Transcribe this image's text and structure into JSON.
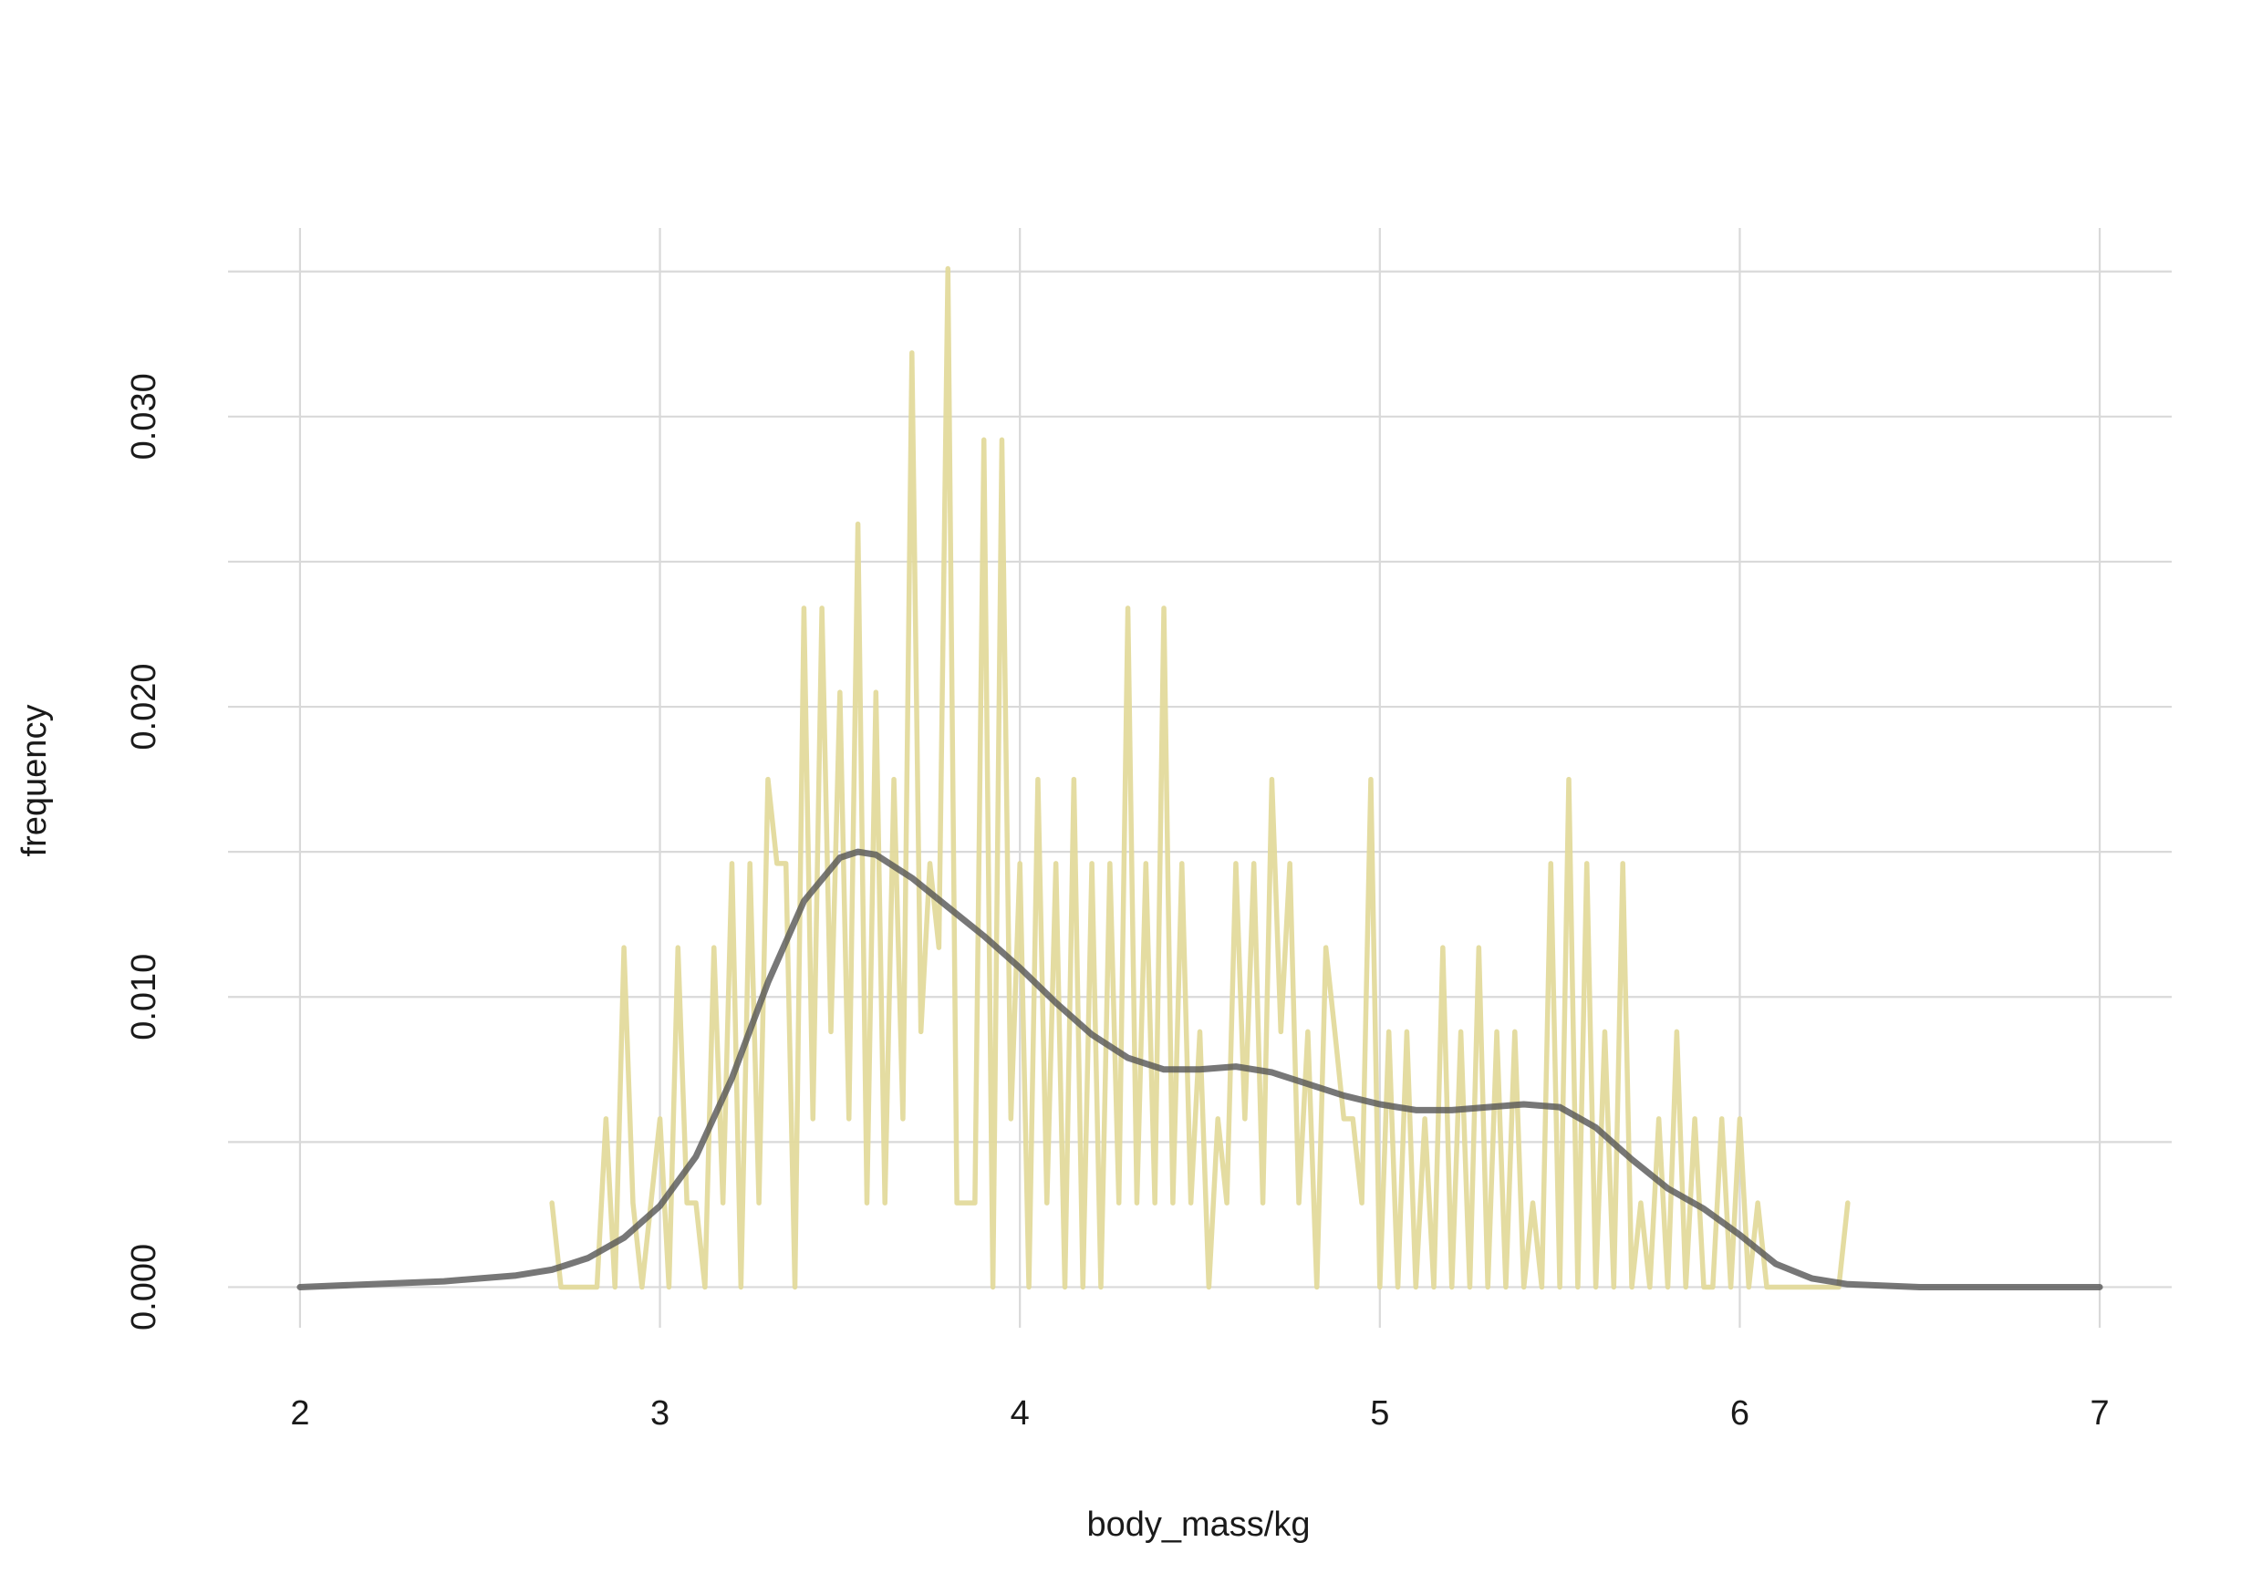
{
  "chart_data": {
    "type": "line",
    "xlabel": "body_mass/kg",
    "ylabel": "frequency",
    "xlim": [
      1.8,
      7.2
    ],
    "ylim": [
      -0.0014,
      0.0365
    ],
    "xticks": [
      2,
      3,
      4,
      5,
      6,
      7
    ],
    "yticks": [
      {
        "value": 0,
        "label": "0.000"
      },
      {
        "value": 0.01,
        "label": "0.010"
      },
      {
        "value": 0.02,
        "label": "0.020"
      },
      {
        "value": 0.03,
        "label": "0.030"
      }
    ],
    "minor_yticks": [
      0.005,
      0.015,
      0.025,
      0.035
    ],
    "grid": true,
    "series": [
      {
        "color": "#e3da9c",
        "width": 5.5,
        "opacity": 0.95,
        "x": [
          2.7,
          2.725,
          2.75,
          2.775,
          2.8,
          2.825,
          2.85,
          2.875,
          2.9,
          2.925,
          2.95,
          2.975,
          3.0,
          3.025,
          3.05,
          3.075,
          3.1,
          3.125,
          3.15,
          3.175,
          3.2,
          3.225,
          3.25,
          3.275,
          3.3,
          3.325,
          3.35,
          3.375,
          3.4,
          3.425,
          3.45,
          3.475,
          3.5,
          3.525,
          3.55,
          3.575,
          3.6,
          3.625,
          3.65,
          3.675,
          3.7,
          3.725,
          3.75,
          3.775,
          3.8,
          3.825,
          3.85,
          3.875,
          3.9,
          3.925,
          3.95,
          3.975,
          4.0,
          4.025,
          4.05,
          4.075,
          4.1,
          4.125,
          4.15,
          4.175,
          4.2,
          4.225,
          4.25,
          4.275,
          4.3,
          4.325,
          4.35,
          4.375,
          4.4,
          4.425,
          4.45,
          4.475,
          4.5,
          4.525,
          4.55,
          4.575,
          4.6,
          4.625,
          4.65,
          4.675,
          4.7,
          4.725,
          4.75,
          4.775,
          4.8,
          4.825,
          4.85,
          4.875,
          4.9,
          4.925,
          4.95,
          4.975,
          5.0,
          5.025,
          5.05,
          5.075,
          5.1,
          5.125,
          5.15,
          5.175,
          5.2,
          5.225,
          5.25,
          5.275,
          5.3,
          5.325,
          5.35,
          5.375,
          5.4,
          5.425,
          5.45,
          5.475,
          5.5,
          5.525,
          5.55,
          5.575,
          5.6,
          5.625,
          5.65,
          5.675,
          5.7,
          5.725,
          5.75,
          5.775,
          5.8,
          5.825,
          5.85,
          5.875,
          5.9,
          5.925,
          5.95,
          5.975,
          6.0,
          6.025,
          6.05,
          6.075,
          6.1,
          6.125,
          6.15,
          6.175,
          6.2,
          6.225,
          6.25,
          6.275,
          6.3
        ],
        "values": [
          0.0029,
          0,
          0,
          0,
          0,
          0,
          0.0058,
          0,
          0.0117,
          0.0029,
          0,
          0.0029,
          0.0058,
          0,
          0.0117,
          0.0029,
          0.0029,
          0,
          0.0117,
          0.0029,
          0.0146,
          0,
          0.0146,
          0.0029,
          0.0175,
          0.0146,
          0.0146,
          0,
          0.0234,
          0.0058,
          0.0234,
          0.0088,
          0.0205,
          0.0058,
          0.0263,
          0.0029,
          0.0205,
          0.0029,
          0.0175,
          0.0058,
          0.0322,
          0.0088,
          0.0146,
          0.0117,
          0.0351,
          0.0029,
          0.0029,
          0.0029,
          0.0292,
          0,
          0.0292,
          0.0058,
          0.0146,
          0,
          0.0175,
          0.0029,
          0.0146,
          0,
          0.0175,
          0,
          0.0146,
          0,
          0.0146,
          0.0029,
          0.0234,
          0.0029,
          0.0146,
          0.0029,
          0.0234,
          0.0029,
          0.0146,
          0.0029,
          0.0088,
          0,
          0.0058,
          0.0029,
          0.0146,
          0.0058,
          0.0146,
          0.0029,
          0.0175,
          0.0088,
          0.0146,
          0.0029,
          0.0088,
          0,
          0.0117,
          0.0088,
          0.0058,
          0.0058,
          0.0029,
          0.0175,
          0,
          0.0088,
          0,
          0.0088,
          0,
          0.0058,
          0,
          0.0117,
          0,
          0.0088,
          0,
          0.0117,
          0,
          0.0088,
          0,
          0.0088,
          0,
          0.0029,
          0,
          0.0146,
          0,
          0.0175,
          0,
          0.0146,
          0,
          0.0088,
          0,
          0.0146,
          0,
          0.0029,
          0,
          0.0058,
          0,
          0.0088,
          0,
          0.0058,
          0,
          0,
          0.0058,
          0,
          0.0058,
          0,
          0.0029,
          0,
          0,
          0,
          0,
          0,
          0,
          0,
          0,
          0,
          0.0029
        ]
      },
      {
        "color": "#555555",
        "width": 7,
        "opacity": 0.8,
        "x": [
          2,
          2.2,
          2.4,
          2.6,
          2.7,
          2.8,
          2.9,
          3.0,
          3.1,
          3.2,
          3.3,
          3.4,
          3.5,
          3.55,
          3.6,
          3.7,
          3.8,
          3.9,
          4.0,
          4.1,
          4.2,
          4.3,
          4.4,
          4.5,
          4.6,
          4.7,
          4.8,
          4.9,
          5.0,
          5.1,
          5.2,
          5.3,
          5.4,
          5.5,
          5.6,
          5.7,
          5.8,
          5.9,
          6.0,
          6.1,
          6.2,
          6.3,
          6.5,
          7
        ],
        "values": [
          0,
          0.0001,
          0.0002,
          0.0004,
          0.0006,
          0.001,
          0.0017,
          0.0028,
          0.0045,
          0.0072,
          0.0105,
          0.0133,
          0.0148,
          0.015,
          0.0149,
          0.0141,
          0.0131,
          0.0121,
          0.011,
          0.0098,
          0.0087,
          0.0079,
          0.0075,
          0.0075,
          0.0076,
          0.0074,
          0.007,
          0.0066,
          0.0063,
          0.0061,
          0.0061,
          0.0062,
          0.0063,
          0.0062,
          0.0055,
          0.0044,
          0.0034,
          0.0027,
          0.0018,
          0.0008,
          0.0003,
          0.0001,
          0,
          0
        ]
      }
    ]
  }
}
